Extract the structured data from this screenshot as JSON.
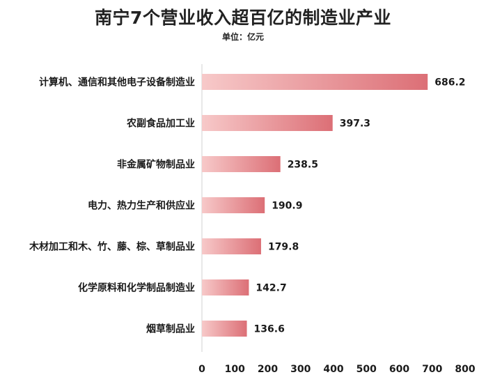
{
  "chart_data": {
    "type": "bar",
    "orientation": "horizontal",
    "title": "南宁7个营业收入超百亿的制造业产业",
    "subtitle": "单位：亿元",
    "categories": [
      "计算机、通信和其他电子设备制造业",
      "农副食品加工业",
      "非金属矿物制品业",
      "电力、热力生产和供应业",
      "木材加工和木、竹、藤、棕、草制品业",
      "化学原料和化学制品制造业",
      "烟草制品业"
    ],
    "values": [
      686.2,
      397.3,
      238.5,
      190.9,
      179.8,
      142.7,
      136.6
    ],
    "data_labels": [
      "686.2",
      "397.3",
      "238.5",
      "190.9",
      "179.8",
      "142.7",
      "136.6"
    ],
    "xlim": [
      0,
      800
    ],
    "x_ticks": [
      "0",
      "100",
      "200",
      "300",
      "400",
      "500",
      "600",
      "700",
      "800"
    ],
    "grid": false,
    "colors": {
      "bar_start": "#f7c9c9",
      "bar_end": "#dc6f76",
      "axis": "#d0d0d0",
      "text": "#1a1a1a"
    }
  }
}
